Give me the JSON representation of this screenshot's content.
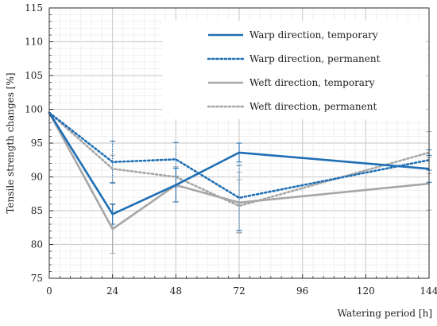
{
  "chart_data": {
    "type": "line",
    "title": "",
    "xlabel": "Watering period [h]",
    "ylabel": "Tensile strength changes [%]",
    "xlim": [
      0,
      144
    ],
    "ylim": [
      75,
      115
    ],
    "x_ticks": [
      0,
      24,
      48,
      72,
      96,
      120,
      144
    ],
    "y_ticks": [
      75,
      80,
      85,
      90,
      95,
      100,
      105,
      110,
      115
    ],
    "grid": true,
    "legend_position": "top-right",
    "series": [
      {
        "name": "Warp direction, temporary",
        "color": "#1f6fb5",
        "style": "solid",
        "x": [
          0,
          24,
          48,
          72,
          144
        ],
        "y": [
          99.5,
          84.5,
          88.8,
          93.6,
          91.2
        ],
        "error": [
          0,
          1.5,
          2.5,
          1.4,
          2.0
        ]
      },
      {
        "name": "Warp direction, permanent",
        "color": "#1f6fb5",
        "style": "dotted",
        "x": [
          0,
          24,
          48,
          72,
          144
        ],
        "y": [
          99.5,
          92.2,
          92.6,
          86.9,
          92.5
        ],
        "error": [
          0,
          3.1,
          2.5,
          4.8,
          1.5
        ]
      },
      {
        "name": "Weft direction, temporary",
        "color": "#a6a6a6",
        "style": "solid",
        "x": [
          0,
          24,
          48,
          72,
          144
        ],
        "y": [
          99.5,
          82.3,
          88.8,
          86.2,
          89.0
        ],
        "error": [
          0,
          3.6,
          2.5,
          4.5,
          3.9
        ]
      },
      {
        "name": "Weft direction, permanent",
        "color": "#a6a6a6",
        "style": "dotted",
        "x": [
          0,
          24,
          48,
          72,
          144
        ],
        "y": [
          99.5,
          91.2,
          90.0,
          85.7,
          93.6
        ],
        "error": [
          0,
          2.0,
          1.5,
          3.9,
          3.1
        ]
      }
    ]
  }
}
